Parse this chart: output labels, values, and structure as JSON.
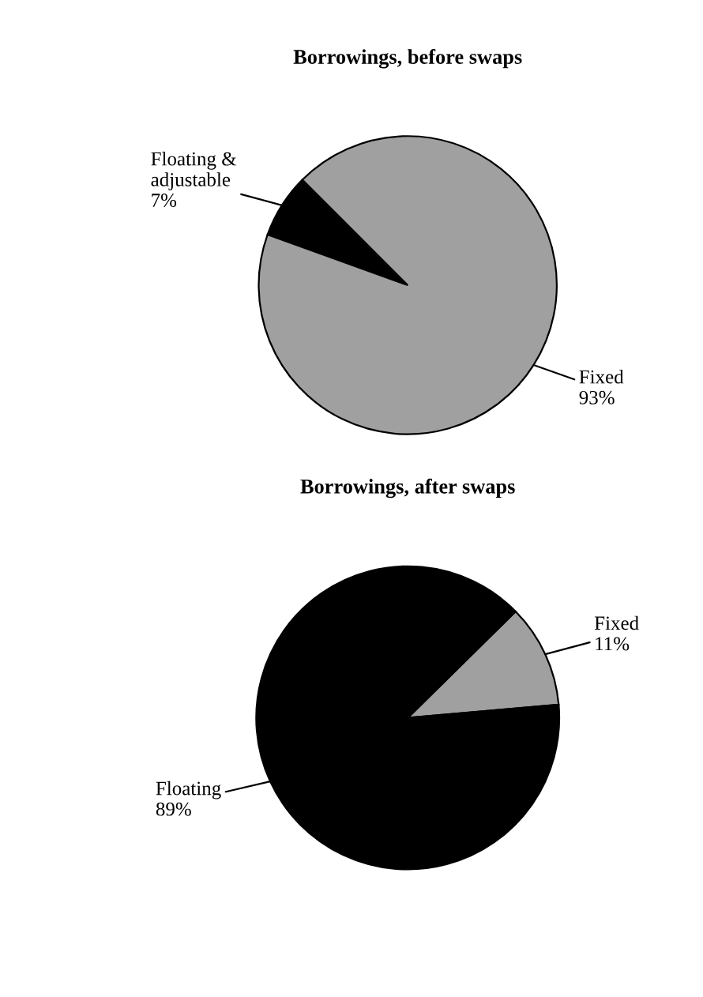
{
  "chart_data": [
    {
      "type": "pie",
      "title": "Borrowings, before swaps",
      "categories": [
        "Floating &\nadjustable",
        "Fixed"
      ],
      "values": [
        7,
        93
      ],
      "colors": [
        "#000000",
        "#a0a0a0"
      ],
      "value_labels": [
        "7%",
        "93%"
      ]
    },
    {
      "type": "pie",
      "title": "Borrowings, after swaps",
      "categories": [
        "Fixed",
        "Floating"
      ],
      "values": [
        11,
        89
      ],
      "colors": [
        "#a0a0a0",
        "#000000"
      ],
      "value_labels": [
        "11%",
        "89%"
      ]
    }
  ]
}
